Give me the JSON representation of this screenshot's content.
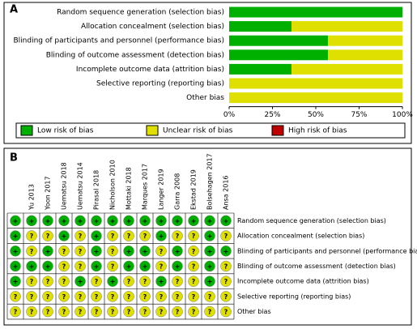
{
  "chart_data": {
    "type": "bar",
    "panel": "A",
    "orientation": "horizontal",
    "stacked": true,
    "categories": [
      "Random sequence generation (selection bias)",
      "Allocation concealment (selection bias)",
      "Blinding of participants and personnel (performance bias)",
      "Blinding of outcome assessment (detection bias)",
      "Incomplete outcome data (attrition bias)",
      "Selective reporting (reporting bias)",
      "Other bias"
    ],
    "series": [
      {
        "name": "Low risk of bias",
        "color": "#00b000",
        "values": [
          100,
          36,
          57,
          57,
          36,
          0,
          0
        ]
      },
      {
        "name": "Unclear risk of bias",
        "color": "#e0e000",
        "values": [
          0,
          64,
          43,
          43,
          64,
          100,
          100
        ]
      },
      {
        "name": "High risk of bias",
        "color": "#c00000",
        "values": [
          0,
          0,
          0,
          0,
          0,
          0,
          0
        ]
      }
    ],
    "xlim": [
      0,
      100
    ],
    "xticks": [
      {
        "value": 0,
        "label": "0%"
      },
      {
        "value": 25,
        "label": "25%"
      },
      {
        "value": 50,
        "label": "50%"
      },
      {
        "value": 75,
        "label": "75%"
      },
      {
        "value": 100,
        "label": "100%"
      }
    ],
    "legend": "bottom"
  },
  "summary": {
    "panel": "B",
    "studies": [
      null,
      "Yu 2013",
      "Yoon 2017",
      "Uematsu 2018",
      "Uematsu 2014",
      "Pirasal 2018",
      "Nicholson 2010",
      "Mottaki 2018",
      "Marques 2017",
      "Langer 2019",
      "Garra 2008",
      "Ekstad 2019",
      "Bolsehagen 2017",
      "Ansa 2016"
    ],
    "domains": [
      "Random sequence generation (selection bias)",
      "Allocation concealment (selection bias)",
      "Blinding of participants and personnel (performance bias)",
      "Blinding of outcome assessment (detection bias)",
      "Incomplete outcome data (attrition bias)",
      "Selective reporting (reporting bias)",
      "Other bias"
    ],
    "judgments": [
      [
        "+",
        "+",
        "+",
        "+",
        "+",
        "+",
        "+",
        "+",
        "+",
        "+",
        "+",
        "+",
        "+",
        "+"
      ],
      [
        "+",
        "?",
        "?",
        "+",
        "?",
        "+",
        "?",
        "?",
        "?",
        "+",
        "?",
        "?",
        "+",
        "?"
      ],
      [
        "+",
        "?",
        "+",
        "?",
        "?",
        "+",
        "?",
        "+",
        "+",
        "?",
        "+",
        "?",
        "+",
        "+"
      ],
      [
        "+",
        "+",
        "+",
        "?",
        "?",
        "+",
        "?",
        "+",
        "+",
        "?",
        "+",
        "?",
        "+",
        "?"
      ],
      [
        "+",
        "?",
        "?",
        "?",
        "+",
        "?",
        "+",
        "?",
        "?",
        "+",
        "?",
        "?",
        "+",
        "?"
      ],
      [
        "?",
        "?",
        "?",
        "?",
        "?",
        "?",
        "?",
        "?",
        "?",
        "?",
        "?",
        "?",
        "?",
        "?"
      ],
      [
        "?",
        "?",
        "?",
        "?",
        "?",
        "?",
        "?",
        "?",
        "?",
        "?",
        "?",
        "?",
        "?",
        "?"
      ]
    ]
  }
}
